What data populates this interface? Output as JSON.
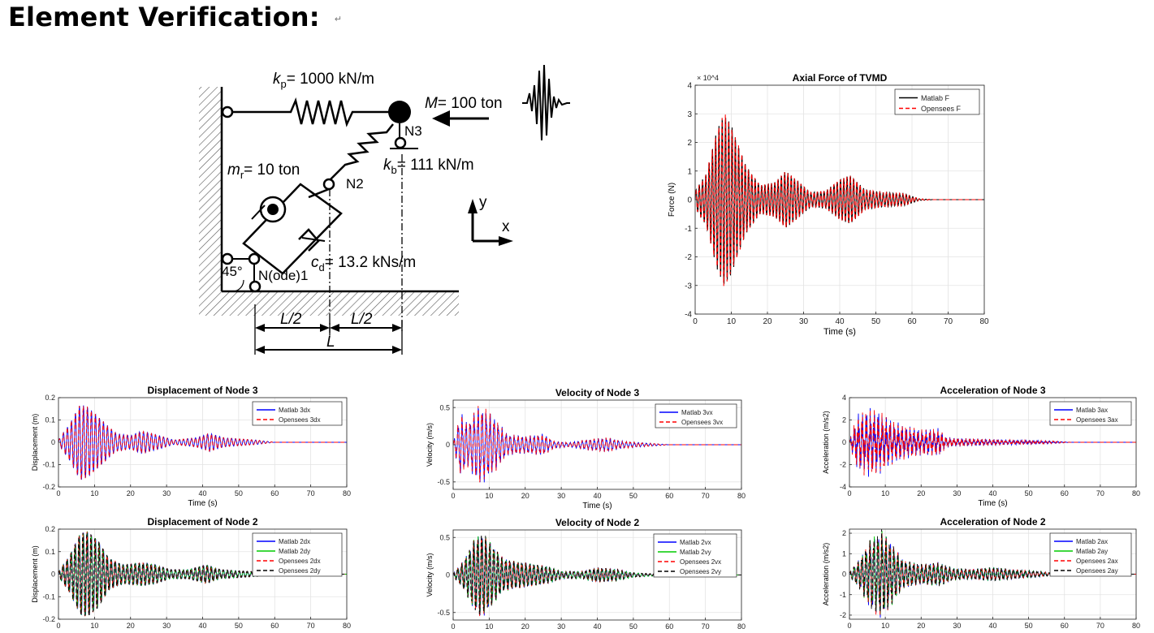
{
  "heading": "Element Verification:",
  "heading_mark": "↵",
  "diagram": {
    "kp": "= 1000 kN/m",
    "mass": "= 100 ton",
    "node3": "N3",
    "kb": "= 111 kN/m",
    "mr": "= 10 ton",
    "node2": "N2",
    "cd": "= 13.2 kNs/m",
    "angle": "45°",
    "node1": "N(ode)1",
    "half_span_left": "L/2",
    "half_span_right": "L/2",
    "span": "L",
    "axis_x": "x",
    "axis_y": "y"
  },
  "chart_data": [
    {
      "id": "axial",
      "type": "line",
      "title": "Axial Force of TVMD",
      "xlabel": "Time (s)",
      "ylabel": "Force (N)",
      "exponent": "× 10^4",
      "xlim": [
        0,
        80
      ],
      "ylim": [
        -4,
        4
      ],
      "xticks": [
        0,
        10,
        20,
        30,
        40,
        50,
        60,
        70,
        80
      ],
      "yticks": [
        -4,
        -3,
        -2,
        -1,
        0,
        1,
        2,
        3,
        4
      ],
      "grid": true,
      "legend_position": "top-right",
      "envelope": [
        [
          0,
          0.3
        ],
        [
          3,
          0.9
        ],
        [
          6,
          2.4
        ],
        [
          8,
          3.05
        ],
        [
          10,
          2.6
        ],
        [
          14,
          1.2
        ],
        [
          18,
          0.5
        ],
        [
          22,
          0.6
        ],
        [
          25,
          1.0
        ],
        [
          28,
          0.7
        ],
        [
          32,
          0.25
        ],
        [
          36,
          0.3
        ],
        [
          40,
          0.7
        ],
        [
          43,
          0.85
        ],
        [
          47,
          0.35
        ],
        [
          52,
          0.25
        ],
        [
          58,
          0.2
        ],
        [
          62,
          0.03
        ],
        [
          66,
          0.0
        ],
        [
          80,
          0.0
        ]
      ],
      "series": [
        {
          "name": "Matlab F",
          "color": "#000000",
          "dash": "solid",
          "freq": 1.1,
          "noise": 0.0
        },
        {
          "name": "Opensees F",
          "color": "#ff0000",
          "dash": "dashed",
          "freq": 1.1,
          "noise": 0.0
        }
      ]
    },
    {
      "id": "disp3",
      "type": "line",
      "title": "Displacement of Node 3",
      "xlabel": "Time (s)",
      "ylabel": "Displacement (m)",
      "xlim": [
        0,
        80
      ],
      "ylim": [
        -0.2,
        0.2
      ],
      "xticks": [
        0,
        10,
        20,
        30,
        40,
        50,
        60,
        70,
        80
      ],
      "yticks": [
        -0.2,
        -0.1,
        0,
        0.1,
        0.2
      ],
      "grid": true,
      "legend_position": "top-right",
      "envelope": [
        [
          0,
          0.01
        ],
        [
          3,
          0.08
        ],
        [
          6,
          0.17
        ],
        [
          8,
          0.16
        ],
        [
          12,
          0.1
        ],
        [
          16,
          0.04
        ],
        [
          20,
          0.03
        ],
        [
          23,
          0.05
        ],
        [
          28,
          0.03
        ],
        [
          32,
          0.01
        ],
        [
          38,
          0.02
        ],
        [
          42,
          0.04
        ],
        [
          46,
          0.02
        ],
        [
          55,
          0.01
        ],
        [
          60,
          0.0
        ],
        [
          80,
          0.0
        ]
      ],
      "series": [
        {
          "name": "Matlab 3dx",
          "color": "#0000ff",
          "dash": "solid",
          "freq": 0.9,
          "noise": 0.0
        },
        {
          "name": "Opensees 3dx",
          "color": "#ff0000",
          "dash": "dashed",
          "freq": 0.9,
          "noise": 0.0
        }
      ]
    },
    {
      "id": "vel3",
      "type": "line",
      "title": "Velocity of Node 3",
      "xlabel": "Time (s)",
      "ylabel": "Velocity (m/s)",
      "xlim": [
        0,
        80
      ],
      "ylim": [
        -0.6,
        0.6
      ],
      "xticks": [
        0,
        10,
        20,
        30,
        40,
        50,
        60,
        70,
        80
      ],
      "yticks": [
        -0.5,
        0,
        0.5
      ],
      "grid": true,
      "legend_position": "top-right",
      "envelope": [
        [
          0,
          0.02
        ],
        [
          2,
          0.45
        ],
        [
          4,
          0.3
        ],
        [
          7,
          0.55
        ],
        [
          9,
          0.5
        ],
        [
          12,
          0.35
        ],
        [
          15,
          0.15
        ],
        [
          20,
          0.12
        ],
        [
          25,
          0.15
        ],
        [
          28,
          0.05
        ],
        [
          32,
          0.03
        ],
        [
          38,
          0.08
        ],
        [
          43,
          0.1
        ],
        [
          47,
          0.05
        ],
        [
          55,
          0.02
        ],
        [
          60,
          0.0
        ],
        [
          80,
          0.0
        ]
      ],
      "series": [
        {
          "name": "Matlab 3vx",
          "color": "#0000ff",
          "dash": "solid",
          "freq": 0.9,
          "noise": 0.4
        },
        {
          "name": "Opensees 3vx",
          "color": "#ff0000",
          "dash": "dashed",
          "freq": 0.9,
          "noise": 0.4
        }
      ]
    },
    {
      "id": "acc3",
      "type": "line",
      "title": "Acceleration of Node 3",
      "xlabel": "Time (s)",
      "ylabel": "Acceleration (m/s2)",
      "xlim": [
        0,
        80
      ],
      "ylim": [
        -4,
        4
      ],
      "xticks": [
        0,
        10,
        20,
        30,
        40,
        50,
        60,
        70,
        80
      ],
      "yticks": [
        -4,
        -2,
        0,
        2,
        4
      ],
      "grid": true,
      "legend_position": "top-right",
      "envelope": [
        [
          0,
          0.2
        ],
        [
          2,
          2.5
        ],
        [
          5,
          3.2
        ],
        [
          8,
          3.0
        ],
        [
          12,
          2.0
        ],
        [
          16,
          1.5
        ],
        [
          20,
          1.2
        ],
        [
          25,
          1.3
        ],
        [
          27,
          0.5
        ],
        [
          30,
          0.4
        ],
        [
          40,
          0.3
        ],
        [
          50,
          0.2
        ],
        [
          58,
          0.1
        ],
        [
          62,
          0.0
        ],
        [
          80,
          0.0
        ]
      ],
      "series": [
        {
          "name": "Matlab 3ax",
          "color": "#0000ff",
          "dash": "solid",
          "freq": 0.9,
          "noise": 0.9
        },
        {
          "name": "Opensees 3ax",
          "color": "#ff0000",
          "dash": "dashed",
          "freq": 0.9,
          "noise": 0.9
        }
      ]
    },
    {
      "id": "disp2",
      "type": "line",
      "title": "Displacement of Node 2",
      "xlabel": "",
      "ylabel": "Displacement (m)",
      "xlim": [
        0,
        80
      ],
      "ylim": [
        -0.2,
        0.2
      ],
      "xticks": [
        0,
        10,
        20,
        30,
        40,
        50,
        60,
        70,
        80
      ],
      "yticks": [
        -0.2,
        -0.1,
        0,
        0.1,
        0.2
      ],
      "grid": true,
      "legend_position": "top-right",
      "envelope": [
        [
          0,
          0.01
        ],
        [
          3,
          0.08
        ],
        [
          6,
          0.18
        ],
        [
          8,
          0.19
        ],
        [
          11,
          0.15
        ],
        [
          14,
          0.07
        ],
        [
          18,
          0.04
        ],
        [
          23,
          0.05
        ],
        [
          27,
          0.04
        ],
        [
          31,
          0.02
        ],
        [
          36,
          0.02
        ],
        [
          41,
          0.04
        ],
        [
          45,
          0.02
        ],
        [
          55,
          0.01
        ],
        [
          60,
          0.0
        ],
        [
          80,
          0.0
        ]
      ],
      "series": [
        {
          "name": "Matlab 2dx",
          "color": "#0000ff",
          "dash": "solid",
          "freq": 0.9,
          "noise": 0.0
        },
        {
          "name": "Matlab 2dy",
          "color": "#00cc00",
          "dash": "solid",
          "freq": 0.9,
          "noise": 0.0
        },
        {
          "name": "Opensees 2dx",
          "color": "#ff0000",
          "dash": "dashed",
          "freq": 0.9,
          "noise": 0.0
        },
        {
          "name": "Opensees 2dy",
          "color": "#000000",
          "dash": "dashed",
          "freq": 0.9,
          "noise": 0.0
        }
      ]
    },
    {
      "id": "vel2",
      "type": "line",
      "title": "Velocity of Node 2",
      "xlabel": "",
      "ylabel": "Velocity (m/s)",
      "xlim": [
        0,
        80
      ],
      "ylim": [
        -0.6,
        0.6
      ],
      "xticks": [
        0,
        10,
        20,
        30,
        40,
        50,
        60,
        70,
        80
      ],
      "yticks": [
        -0.5,
        0,
        0.5
      ],
      "grid": true,
      "legend_position": "top-right",
      "envelope": [
        [
          0,
          0.02
        ],
        [
          3,
          0.2
        ],
        [
          6,
          0.5
        ],
        [
          8,
          0.58
        ],
        [
          11,
          0.4
        ],
        [
          14,
          0.22
        ],
        [
          18,
          0.18
        ],
        [
          22,
          0.15
        ],
        [
          26,
          0.12
        ],
        [
          30,
          0.05
        ],
        [
          36,
          0.05
        ],
        [
          40,
          0.1
        ],
        [
          45,
          0.08
        ],
        [
          50,
          0.03
        ],
        [
          58,
          0.01
        ],
        [
          60,
          0.0
        ],
        [
          80,
          0.0
        ]
      ],
      "series": [
        {
          "name": "Matlab 2vx",
          "color": "#0000ff",
          "dash": "solid",
          "freq": 0.9,
          "noise": 0.2
        },
        {
          "name": "Matlab 2vy",
          "color": "#00cc00",
          "dash": "solid",
          "freq": 0.9,
          "noise": 0.2
        },
        {
          "name": "Opensees 2vx",
          "color": "#ff0000",
          "dash": "dashed",
          "freq": 0.9,
          "noise": 0.2
        },
        {
          "name": "Opensees 2vy",
          "color": "#000000",
          "dash": "dashed",
          "freq": 0.9,
          "noise": 0.2
        }
      ]
    },
    {
      "id": "acc2",
      "type": "line",
      "title": "Acceleration of Node 2",
      "xlabel": "",
      "ylabel": "Acceleration (m/s2)",
      "xlim": [
        0,
        80
      ],
      "ylim": [
        -2.2,
        2.2
      ],
      "xticks": [
        0,
        10,
        20,
        30,
        40,
        50,
        60,
        70,
        80
      ],
      "yticks": [
        -2,
        -1,
        0,
        1,
        2
      ],
      "grid": true,
      "legend_position": "top-right",
      "envelope": [
        [
          0,
          0.1
        ],
        [
          3,
          0.8
        ],
        [
          6,
          1.8
        ],
        [
          9,
          2.2
        ],
        [
          12,
          1.5
        ],
        [
          15,
          0.7
        ],
        [
          20,
          0.5
        ],
        [
          25,
          0.6
        ],
        [
          29,
          0.3
        ],
        [
          34,
          0.25
        ],
        [
          40,
          0.35
        ],
        [
          45,
          0.25
        ],
        [
          52,
          0.15
        ],
        [
          58,
          0.05
        ],
        [
          62,
          0.0
        ],
        [
          80,
          0.0
        ]
      ],
      "series": [
        {
          "name": "Matlab 2ax",
          "color": "#0000ff",
          "dash": "solid",
          "freq": 0.9,
          "noise": 0.4
        },
        {
          "name": "Matlab 2ay",
          "color": "#00cc00",
          "dash": "solid",
          "freq": 0.9,
          "noise": 0.4
        },
        {
          "name": "Opensees 2ax",
          "color": "#ff0000",
          "dash": "dashed",
          "freq": 0.9,
          "noise": 0.4
        },
        {
          "name": "Opensees 2ay",
          "color": "#000000",
          "dash": "dashed",
          "freq": 0.9,
          "noise": 0.4
        }
      ]
    }
  ]
}
